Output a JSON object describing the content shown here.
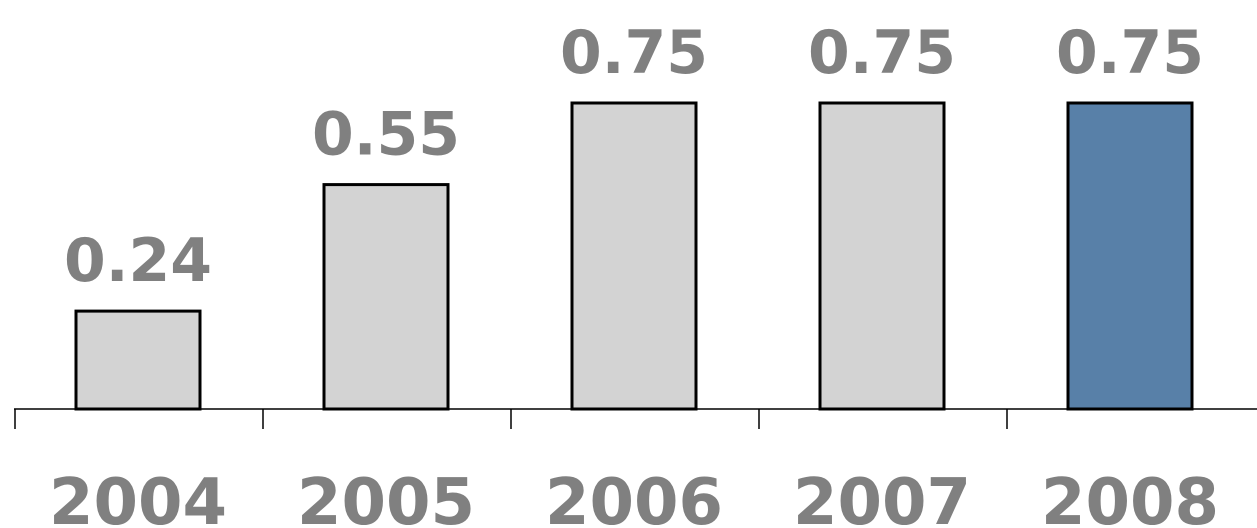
{
  "chart_data": {
    "type": "bar",
    "categories": [
      "2004",
      "2005",
      "2006",
      "2007",
      "2008"
    ],
    "values": [
      0.24,
      0.55,
      0.75,
      0.75,
      0.75
    ],
    "data_labels": [
      "0.24",
      "0.55",
      "0.75",
      "0.75",
      "0.75"
    ],
    "title": "",
    "xlabel": "",
    "ylabel": "",
    "ylim": [
      0,
      0.75
    ],
    "grid": false,
    "legend": "none",
    "colors": {
      "default_bar": "#d3d3d3",
      "highlight_bar": "#5880a8",
      "highlight_index": 4,
      "bar_outline": "#000000",
      "label_text": "#808080",
      "axis": "#000000"
    }
  }
}
